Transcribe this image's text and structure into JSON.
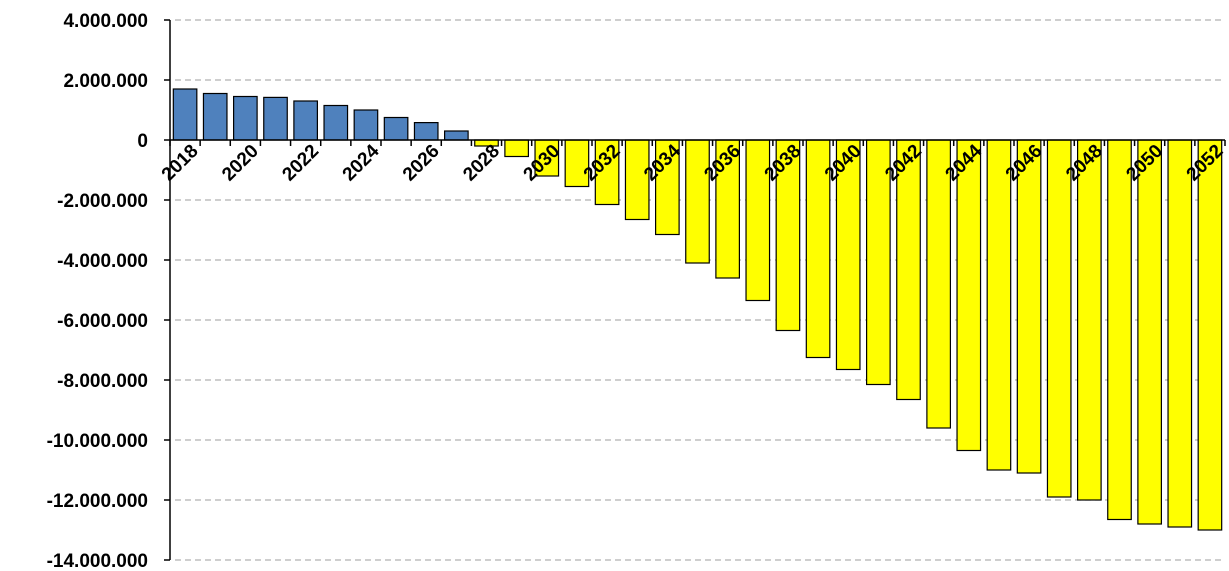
{
  "chart_data": {
    "type": "bar",
    "title": "",
    "xlabel": "",
    "ylabel": "",
    "ylim": [
      -14000000,
      4000000
    ],
    "yticks": [
      4000000,
      2000000,
      0,
      -2000000,
      -4000000,
      -6000000,
      -8000000,
      -10000000,
      -12000000,
      -14000000
    ],
    "ytick_labels": [
      "4.000.000",
      "2.000.000",
      "0",
      "-2.000.000",
      "-4.000.000",
      "-6.000.000",
      "-8.000.000",
      "-10.000.000",
      "-12.000.000",
      "-14.000.000"
    ],
    "grid": true,
    "positive_color": "#4F81BD",
    "negative_color": "#FFFF00",
    "categories": [
      "2018",
      "2019",
      "2020",
      "2021",
      "2022",
      "2023",
      "2024",
      "2025",
      "2026",
      "2027",
      "2028",
      "2029",
      "2030",
      "2031",
      "2032",
      "2033",
      "2034",
      "2035",
      "2036",
      "2037",
      "2038",
      "2039",
      "2040",
      "2041",
      "2042",
      "2043",
      "2044",
      "2045",
      "2046",
      "2047",
      "2048",
      "2049",
      "2050",
      "2051",
      "2052"
    ],
    "category_labels_shown": [
      "2018",
      "",
      "2020",
      "",
      "2022",
      "",
      "2024",
      "",
      "2026",
      "",
      "2028",
      "",
      "2030",
      "",
      "2032",
      "",
      "2034",
      "",
      "2036",
      "",
      "2038",
      "",
      "2040",
      "",
      "2042",
      "",
      "2044",
      "",
      "2046",
      "",
      "2048",
      "",
      "2050",
      "",
      "2052"
    ],
    "values": [
      1700000,
      1550000,
      1450000,
      1420000,
      1300000,
      1150000,
      1000000,
      750000,
      580000,
      300000,
      -200000,
      -550000,
      -1200000,
      -1550000,
      -2150000,
      -2650000,
      -3150000,
      -4100000,
      -4600000,
      -5350000,
      -6350000,
      -7250000,
      -7650000,
      -8150000,
      -8650000,
      -9600000,
      -10350000,
      -11000000,
      -11100000,
      -11900000,
      -12000000,
      -12650000,
      -12800000,
      -12900000,
      -13000000
    ]
  }
}
